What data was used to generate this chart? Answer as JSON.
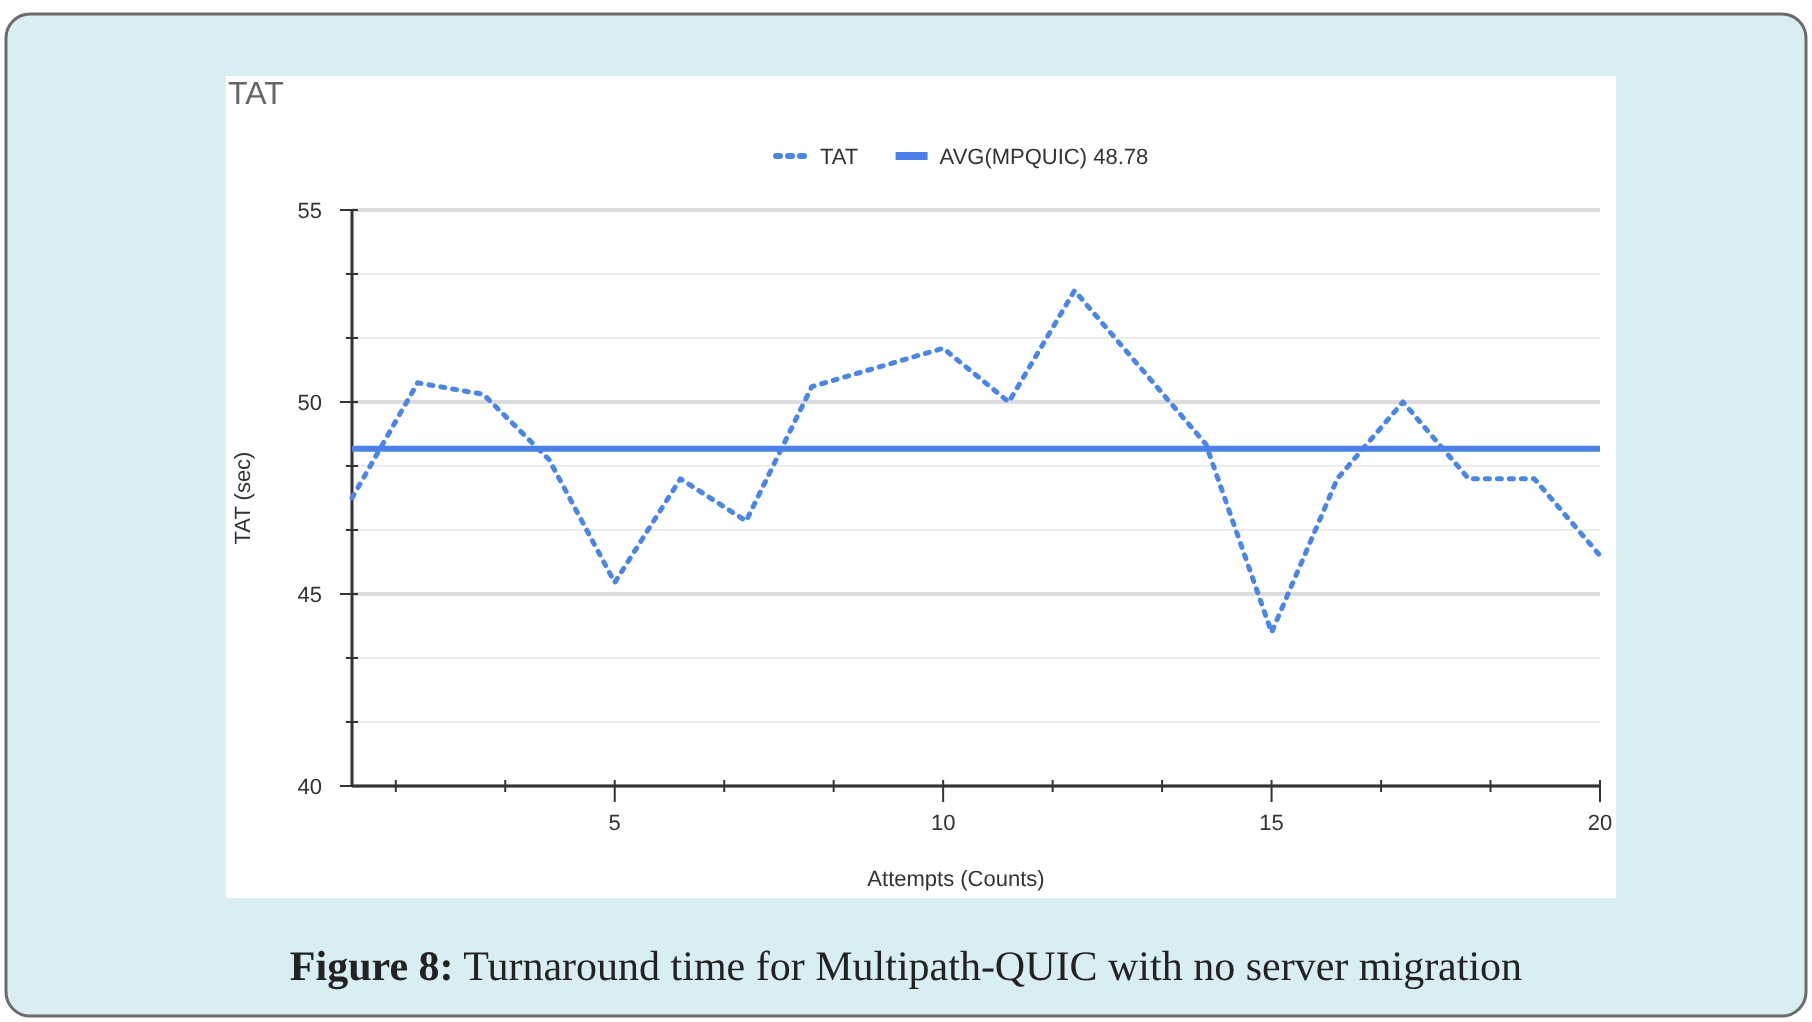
{
  "chart_data": {
    "type": "line",
    "title": "TAT",
    "xlabel": "Attempts (Counts)",
    "ylabel": "TAT (sec)",
    "xlim": [
      1,
      20
    ],
    "xticks": [
      {
        "value": 1.667,
        "label": null
      },
      {
        "value": 3.333,
        "label": null
      },
      5,
      {
        "value": 6.667,
        "label": null
      },
      {
        "value": 8.333,
        "label": null
      },
      10,
      {
        "value": 11.667,
        "label": null
      },
      {
        "value": 13.333,
        "label": null
      },
      15,
      {
        "value": 16.667,
        "label": null
      },
      {
        "value": 18.333,
        "label": null
      },
      20
    ],
    "ylim": [
      40,
      55
    ],
    "yticks": [
      40,
      {
        "value": 41.667,
        "label": null
      },
      {
        "value": 43.333,
        "label": null
      },
      45,
      {
        "value": 46.667,
        "label": null
      },
      {
        "value": 48.333,
        "label": null
      },
      50,
      {
        "value": 51.667,
        "label": null
      },
      {
        "value": 53.333,
        "label": null
      },
      55
    ],
    "grid": "y",
    "legend": "top",
    "series": [
      {
        "name": "TAT",
        "color": "#4a86e8",
        "line_style": "dotted",
        "x": [
          1,
          2,
          3,
          4,
          5,
          6,
          7,
          8,
          9,
          10,
          11,
          12,
          13,
          14,
          15,
          16,
          17,
          18,
          19,
          20
        ],
        "values": [
          47.5,
          50.5,
          50.2,
          48.5,
          45.3,
          48,
          46.9,
          50.4,
          50.9,
          51.4,
          50,
          52.9,
          50.9,
          48.9,
          44,
          48,
          50,
          48,
          48,
          46
        ]
      },
      {
        "name": "AVG(MPQUIC) 48.78",
        "color": "#4a80e8",
        "line_style": "solid",
        "x": [
          1,
          20
        ],
        "values": [
          48.78,
          48.78
        ]
      }
    ],
    "annotations": [
      "Figure 8: Turnaround time for Multipath-QUIC with no server migration"
    ]
  }
}
